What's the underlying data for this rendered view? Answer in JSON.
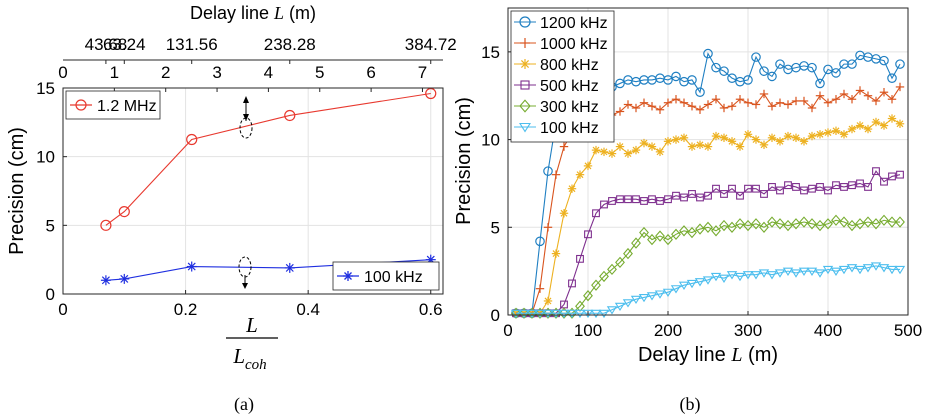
{
  "panel_a": {
    "caption": "(a)",
    "top_axis_label_prefix": "Delay line ",
    "top_axis_label_var": "L",
    "top_axis_label_unit": " (m)",
    "ylabel": "Precision (cm)",
    "xlabel_num": "L",
    "xlabel_den_main": "L",
    "xlabel_den_sub": "coh"
  },
  "panel_b": {
    "caption": "(b)",
    "ylabel": "Precision (cm)",
    "xlabel_prefix": "Delay line  ",
    "xlabel_var": "L",
    "xlabel_unit": " (m)"
  },
  "chart_data": [
    {
      "type": "line",
      "xlim": [
        0,
        0.62
      ],
      "ylim": [
        0,
        15
      ],
      "xticks": [
        0,
        0.2,
        0.4,
        0.6
      ],
      "xtick_labels": [
        "0",
        "0.2",
        "0.4",
        "0.6"
      ],
      "yticks": [
        0,
        5,
        10,
        15
      ],
      "ytick_labels": [
        "0",
        "5",
        "10",
        "15"
      ],
      "grid": true,
      "top_axis": {
        "xlim": [
          0,
          7.4
        ],
        "ticks": [
          0,
          1,
          2,
          3,
          4,
          5,
          6,
          7
        ],
        "tick_labels": [
          "0",
          "1",
          "2",
          "3",
          "4",
          "5",
          "6",
          "7"
        ],
        "outer_labels": [
          "43.68",
          "63.24",
          "131.56",
          "238.28",
          "384.72"
        ]
      },
      "series": [
        {
          "name": "1.2 MHz",
          "color": "#e8392f",
          "marker": "circle",
          "x": [
            0.07,
            0.1,
            0.21,
            0.37,
            0.6
          ],
          "y": [
            5.0,
            6.0,
            11.25,
            13.0,
            14.6
          ]
        },
        {
          "name": "100 kHz",
          "color": "#1f2fe0",
          "marker": "asterisk",
          "x": [
            0.07,
            0.1,
            0.21,
            0.37,
            0.6
          ],
          "y": [
            1.0,
            1.1,
            2.0,
            1.9,
            2.5
          ]
        }
      ]
    },
    {
      "type": "line",
      "xlim": [
        0,
        500
      ],
      "ylim": [
        0,
        17.5
      ],
      "xticks": [
        0,
        100,
        200,
        300,
        400,
        500
      ],
      "xtick_labels": [
        "0",
        "100",
        "200",
        "300",
        "400",
        "500"
      ],
      "yticks": [
        0,
        5,
        10,
        15
      ],
      "ytick_labels": [
        "0",
        "5",
        "10",
        "15"
      ],
      "grid": true,
      "legend_position": "top-left",
      "series": [
        {
          "name": "1200 kHz",
          "color": "#1f7fc2",
          "marker": "circle",
          "x": [
            10,
            20,
            30,
            40,
            50,
            60,
            70,
            80,
            90,
            100,
            110,
            120,
            130,
            140,
            150,
            160,
            170,
            180,
            190,
            200,
            210,
            220,
            230,
            240,
            250,
            260,
            270,
            280,
            290,
            300,
            310,
            320,
            330,
            340,
            350,
            360,
            370,
            380,
            390,
            400,
            410,
            420,
            430,
            440,
            450,
            460,
            470,
            480,
            490
          ],
          "y": [
            0.1,
            0.1,
            0.1,
            4.2,
            8.2,
            11.0,
            12.2,
            12.6,
            13.0,
            13.0,
            13.3,
            13.2,
            13.0,
            13.2,
            13.4,
            13.3,
            13.4,
            13.4,
            13.5,
            13.4,
            13.6,
            13.3,
            13.4,
            12.7,
            14.9,
            14.1,
            13.9,
            13.5,
            13.3,
            13.4,
            14.7,
            13.9,
            13.6,
            14.3,
            14.0,
            14.1,
            14.2,
            14.1,
            13.2,
            14.0,
            13.8,
            14.3,
            14.3,
            14.8,
            14.7,
            14.6,
            14.5,
            13.5,
            14.3
          ]
        },
        {
          "name": "1000 kHz",
          "color": "#d9541e",
          "marker": "plus",
          "x": [
            10,
            20,
            30,
            40,
            50,
            60,
            70,
            80,
            90,
            100,
            110,
            120,
            130,
            140,
            150,
            160,
            170,
            180,
            190,
            200,
            210,
            220,
            230,
            240,
            250,
            260,
            270,
            280,
            290,
            300,
            310,
            320,
            330,
            340,
            350,
            360,
            370,
            380,
            390,
            400,
            410,
            420,
            430,
            440,
            450,
            460,
            470,
            480,
            490
          ],
          "y": [
            0.1,
            0.1,
            0.1,
            1.5,
            5.0,
            8.0,
            9.6,
            10.4,
            11.0,
            11.2,
            11.3,
            11.2,
            11.4,
            11.6,
            12.0,
            11.8,
            12.1,
            11.9,
            11.7,
            12.1,
            12.3,
            12.1,
            11.9,
            11.7,
            12.0,
            12.3,
            11.8,
            11.9,
            12.3,
            12.1,
            12.0,
            12.6,
            11.9,
            12.1,
            12.0,
            12.2,
            12.2,
            11.8,
            12.5,
            12.1,
            12.3,
            12.6,
            12.3,
            12.8,
            12.5,
            12.2,
            12.7,
            12.3,
            13.0
          ]
        },
        {
          "name": "800 kHz",
          "color": "#edb120",
          "marker": "asterisk",
          "x": [
            10,
            20,
            30,
            40,
            50,
            60,
            70,
            80,
            90,
            100,
            110,
            120,
            130,
            140,
            150,
            160,
            170,
            180,
            190,
            200,
            210,
            220,
            230,
            240,
            250,
            260,
            270,
            280,
            290,
            300,
            310,
            320,
            330,
            340,
            350,
            360,
            370,
            380,
            390,
            400,
            410,
            420,
            430,
            440,
            450,
            460,
            470,
            480,
            490
          ],
          "y": [
            0.1,
            0.1,
            0.1,
            0.1,
            0.8,
            3.5,
            5.8,
            7.2,
            8.0,
            8.5,
            9.4,
            9.3,
            9.2,
            9.6,
            9.2,
            9.4,
            9.8,
            9.6,
            9.3,
            9.9,
            10.0,
            10.1,
            9.6,
            9.7,
            9.6,
            10.2,
            10.1,
            9.9,
            9.6,
            10.3,
            10.0,
            9.7,
            10.1,
            9.9,
            10.2,
            10.1,
            9.9,
            10.2,
            10.3,
            10.4,
            10.5,
            10.3,
            10.6,
            10.8,
            10.6,
            11.0,
            10.8,
            11.2,
            10.9
          ]
        },
        {
          "name": "500 kHz",
          "color": "#7e2f8e",
          "marker": "square",
          "x": [
            10,
            20,
            30,
            40,
            50,
            60,
            70,
            80,
            90,
            100,
            110,
            120,
            130,
            140,
            150,
            160,
            170,
            180,
            190,
            200,
            210,
            220,
            230,
            240,
            250,
            260,
            270,
            280,
            290,
            300,
            310,
            320,
            330,
            340,
            350,
            360,
            370,
            380,
            390,
            400,
            410,
            420,
            430,
            440,
            450,
            460,
            470,
            480,
            490
          ],
          "y": [
            0.1,
            0.1,
            0.1,
            0.1,
            0.1,
            0.1,
            0.6,
            1.8,
            3.2,
            4.6,
            5.8,
            6.3,
            6.5,
            6.6,
            6.6,
            6.6,
            6.5,
            6.6,
            6.5,
            6.6,
            6.8,
            6.7,
            6.9,
            6.7,
            6.8,
            7.2,
            6.9,
            7.2,
            6.8,
            7.2,
            7.2,
            6.9,
            7.3,
            7.1,
            7.4,
            7.3,
            7.1,
            7.2,
            7.3,
            7.1,
            7.4,
            7.3,
            7.4,
            7.5,
            7.3,
            8.2,
            7.6,
            7.9,
            8.0
          ]
        },
        {
          "name": "300 kHz",
          "color": "#77ac30",
          "marker": "diamond",
          "x": [
            10,
            20,
            30,
            40,
            50,
            60,
            70,
            80,
            90,
            100,
            110,
            120,
            130,
            140,
            150,
            160,
            170,
            180,
            190,
            200,
            210,
            220,
            230,
            240,
            250,
            260,
            270,
            280,
            290,
            300,
            310,
            320,
            330,
            340,
            350,
            360,
            370,
            380,
            390,
            400,
            410,
            420,
            430,
            440,
            450,
            460,
            470,
            480,
            490
          ],
          "y": [
            0.1,
            0.1,
            0.1,
            0.1,
            0.1,
            0.1,
            0.1,
            0.1,
            0.5,
            1.1,
            1.7,
            2.2,
            2.6,
            3.0,
            3.5,
            4.1,
            4.7,
            4.3,
            4.5,
            4.3,
            4.6,
            4.8,
            4.7,
            4.9,
            5.0,
            4.8,
            5.1,
            5.0,
            5.2,
            5.1,
            5.2,
            5.0,
            5.3,
            5.2,
            5.1,
            5.2,
            5.3,
            5.2,
            5.1,
            5.2,
            5.4,
            5.3,
            5.1,
            5.2,
            5.3,
            5.2,
            5.4,
            5.3,
            5.3
          ]
        },
        {
          "name": "100 kHz",
          "color": "#4dbeee",
          "marker": "triangle-down",
          "x": [
            10,
            20,
            30,
            40,
            50,
            60,
            70,
            80,
            90,
            100,
            110,
            120,
            130,
            140,
            150,
            160,
            170,
            180,
            190,
            200,
            210,
            220,
            230,
            240,
            250,
            260,
            270,
            280,
            290,
            300,
            310,
            320,
            330,
            340,
            350,
            360,
            370,
            380,
            390,
            400,
            410,
            420,
            430,
            440,
            450,
            460,
            470,
            480,
            490
          ],
          "y": [
            0.1,
            0.1,
            0.1,
            0.1,
            0.1,
            0.1,
            0.1,
            0.1,
            0.1,
            0.1,
            0.1,
            0.1,
            0.3,
            0.5,
            0.7,
            0.9,
            1.0,
            1.1,
            1.2,
            1.3,
            1.5,
            1.7,
            1.8,
            1.9,
            2.0,
            2.2,
            2.1,
            2.3,
            2.2,
            2.3,
            2.3,
            2.4,
            2.3,
            2.4,
            2.5,
            2.4,
            2.5,
            2.5,
            2.4,
            2.6,
            2.5,
            2.6,
            2.7,
            2.6,
            2.7,
            2.8,
            2.7,
            2.6,
            2.6
          ]
        }
      ]
    }
  ]
}
